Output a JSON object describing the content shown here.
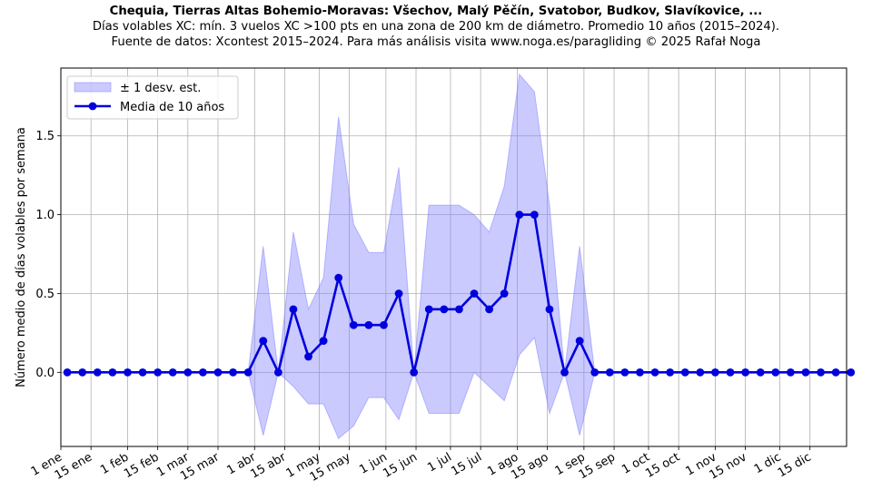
{
  "chart_data": {
    "type": "line",
    "title": "Chequia, Tierras Altas Bohemio-Moravas: Všechov, Malý Pěčín, Svatobor, Budkov, Slavíkovice, ...",
    "subtitle_lines": [
      "Días volables XC: mín. 3 vuelos XC >100 pts en una zona de 200 km de diámetro. Promedio 10 años (2015–2024).",
      "Fuente de datos: Xcontest 2015–2024. Para más análisis visita www.noga.es/paragliding © 2025 Rafał Noga"
    ],
    "xlabel": "",
    "ylabel": "Número medio de días volables por semana",
    "x_tick_labels": [
      "1 ene",
      "15 ene",
      "1 feb",
      "15 feb",
      "1 mar",
      "15 mar",
      "1 abr",
      "15 abr",
      "1 may",
      "15 may",
      "1 jun",
      "15 jun",
      "1 jul",
      "15 jul",
      "1 ago",
      "15 ago",
      "1 sep",
      "15 sep",
      "1 oct",
      "15 oct",
      "1 nov",
      "15 nov",
      "1 dic",
      "15 dic"
    ],
    "y_ticks": [
      "0.0",
      "0.5",
      "1.0",
      "1.5"
    ],
    "ylim": [
      -0.47,
      1.93
    ],
    "grid": true,
    "legend_position": "top-left",
    "series": [
      {
        "name": "Media de 10 años",
        "color": "#0000dd",
        "values": [
          0,
          0,
          0,
          0,
          0,
          0,
          0,
          0,
          0,
          0,
          0,
          0,
          0,
          0.2,
          0,
          0.4,
          0.1,
          0.2,
          0.6,
          0.3,
          0.3,
          0.3,
          0.5,
          0,
          0.4,
          0.4,
          0.4,
          0.5,
          0.4,
          0.5,
          1.0,
          1.0,
          0.4,
          0,
          0.2,
          0,
          0,
          0,
          0,
          0,
          0,
          0,
          0,
          0,
          0,
          0,
          0,
          0,
          0,
          0,
          0,
          0,
          0
        ]
      },
      {
        "name": "± 1 desv. est.",
        "color": "#8080ff",
        "upper": [
          0,
          0,
          0,
          0,
          0,
          0,
          0,
          0,
          0,
          0,
          0,
          0,
          0,
          0.8,
          0,
          0.89,
          0.4,
          0.6,
          1.62,
          0.94,
          0.76,
          0.76,
          1.3,
          0,
          1.06,
          1.06,
          1.06,
          1.0,
          0.89,
          1.18,
          1.89,
          1.78,
          1.06,
          0,
          0.8,
          0,
          0,
          0,
          0,
          0,
          0,
          0,
          0,
          0,
          0,
          0,
          0,
          0,
          0,
          0,
          0,
          0,
          0
        ],
        "lower": [
          0,
          0,
          0,
          0,
          0,
          0,
          0,
          0,
          0,
          0,
          0,
          0,
          0,
          -0.4,
          0,
          -0.09,
          -0.2,
          -0.2,
          -0.42,
          -0.34,
          -0.16,
          -0.16,
          -0.3,
          0,
          -0.26,
          -0.26,
          -0.26,
          0,
          -0.09,
          -0.18,
          0.11,
          0.22,
          -0.26,
          0,
          -0.4,
          0,
          0,
          0,
          0,
          0,
          0,
          0,
          0,
          0,
          0,
          0,
          0,
          0,
          0,
          0,
          0,
          0,
          0
        ]
      }
    ]
  }
}
